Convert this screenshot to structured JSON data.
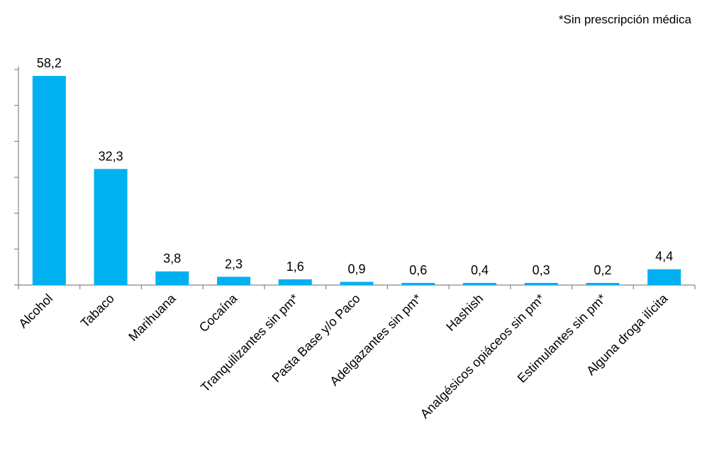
{
  "note": "*Sin prescripción médica",
  "chart_data": {
    "type": "bar",
    "categories": [
      "Alcohol",
      "Tabaco",
      "Marihuana",
      "Cocaína",
      "Tranquilizantes sin pm*",
      "Pasta Base y/o Paco",
      "Adelgazantes sin pm*",
      "Hashish",
      "Analgésicos opiáceos sin pm*",
      "Estimulantes sin pm*",
      "Alguna droga ilícita"
    ],
    "values": [
      58.2,
      32.3,
      3.8,
      2.3,
      1.6,
      0.9,
      0.6,
      0.4,
      0.3,
      0.2,
      4.4
    ],
    "value_labels": [
      "58,2",
      "32,3",
      "3,8",
      "2,3",
      "1,6",
      "0,9",
      "0,6",
      "0,4",
      "0,3",
      "0,2",
      "4,4"
    ],
    "ylim": [
      0,
      60
    ],
    "y_tick_step": 10,
    "grid": false,
    "bar_color": "#00B0F0",
    "axis_color": "#868686"
  }
}
